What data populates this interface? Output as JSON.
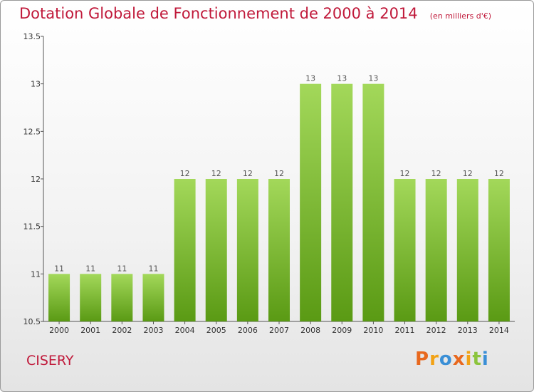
{
  "header": {
    "title": "Dotation Globale de Fonctionnement de 2000 à 2014",
    "subtitle": "(en milliers d'€)"
  },
  "footer": {
    "commune": "CISERY",
    "logo_text": "Proxiti"
  },
  "colors": {
    "title": "#c0193a",
    "bar_top": "#a3d85a",
    "bar_bottom": "#5a9a14",
    "logo": [
      "#e8681e",
      "#f2a215",
      "#3a8fd6",
      "#e8681e",
      "#f2a215",
      "#8cc43c",
      "#3a8fd6"
    ]
  },
  "chart_data": {
    "type": "bar",
    "categories": [
      "2000",
      "2001",
      "2002",
      "2003",
      "2004",
      "2005",
      "2006",
      "2007",
      "2008",
      "2009",
      "2010",
      "2011",
      "2012",
      "2013",
      "2014"
    ],
    "values": [
      11,
      11,
      11,
      11,
      12,
      12,
      12,
      12,
      13,
      13,
      13,
      12,
      12,
      12,
      12
    ],
    "data_labels": [
      "11",
      "11",
      "11",
      "11",
      "12",
      "12",
      "12",
      "12",
      "13",
      "13",
      "13",
      "12",
      "12",
      "12",
      "12"
    ],
    "title": "Dotation Globale de Fonctionnement de 2000 à 2014",
    "xlabel": "",
    "ylabel": "",
    "ylim": [
      10.5,
      13.5
    ],
    "yticks": [
      10.5,
      11,
      11.5,
      12,
      12.5,
      13,
      13.5
    ],
    "ytick_labels": [
      "10.5",
      "11",
      "11.5",
      "12",
      "12.5",
      "13",
      "13.5"
    ],
    "grid": false
  }
}
